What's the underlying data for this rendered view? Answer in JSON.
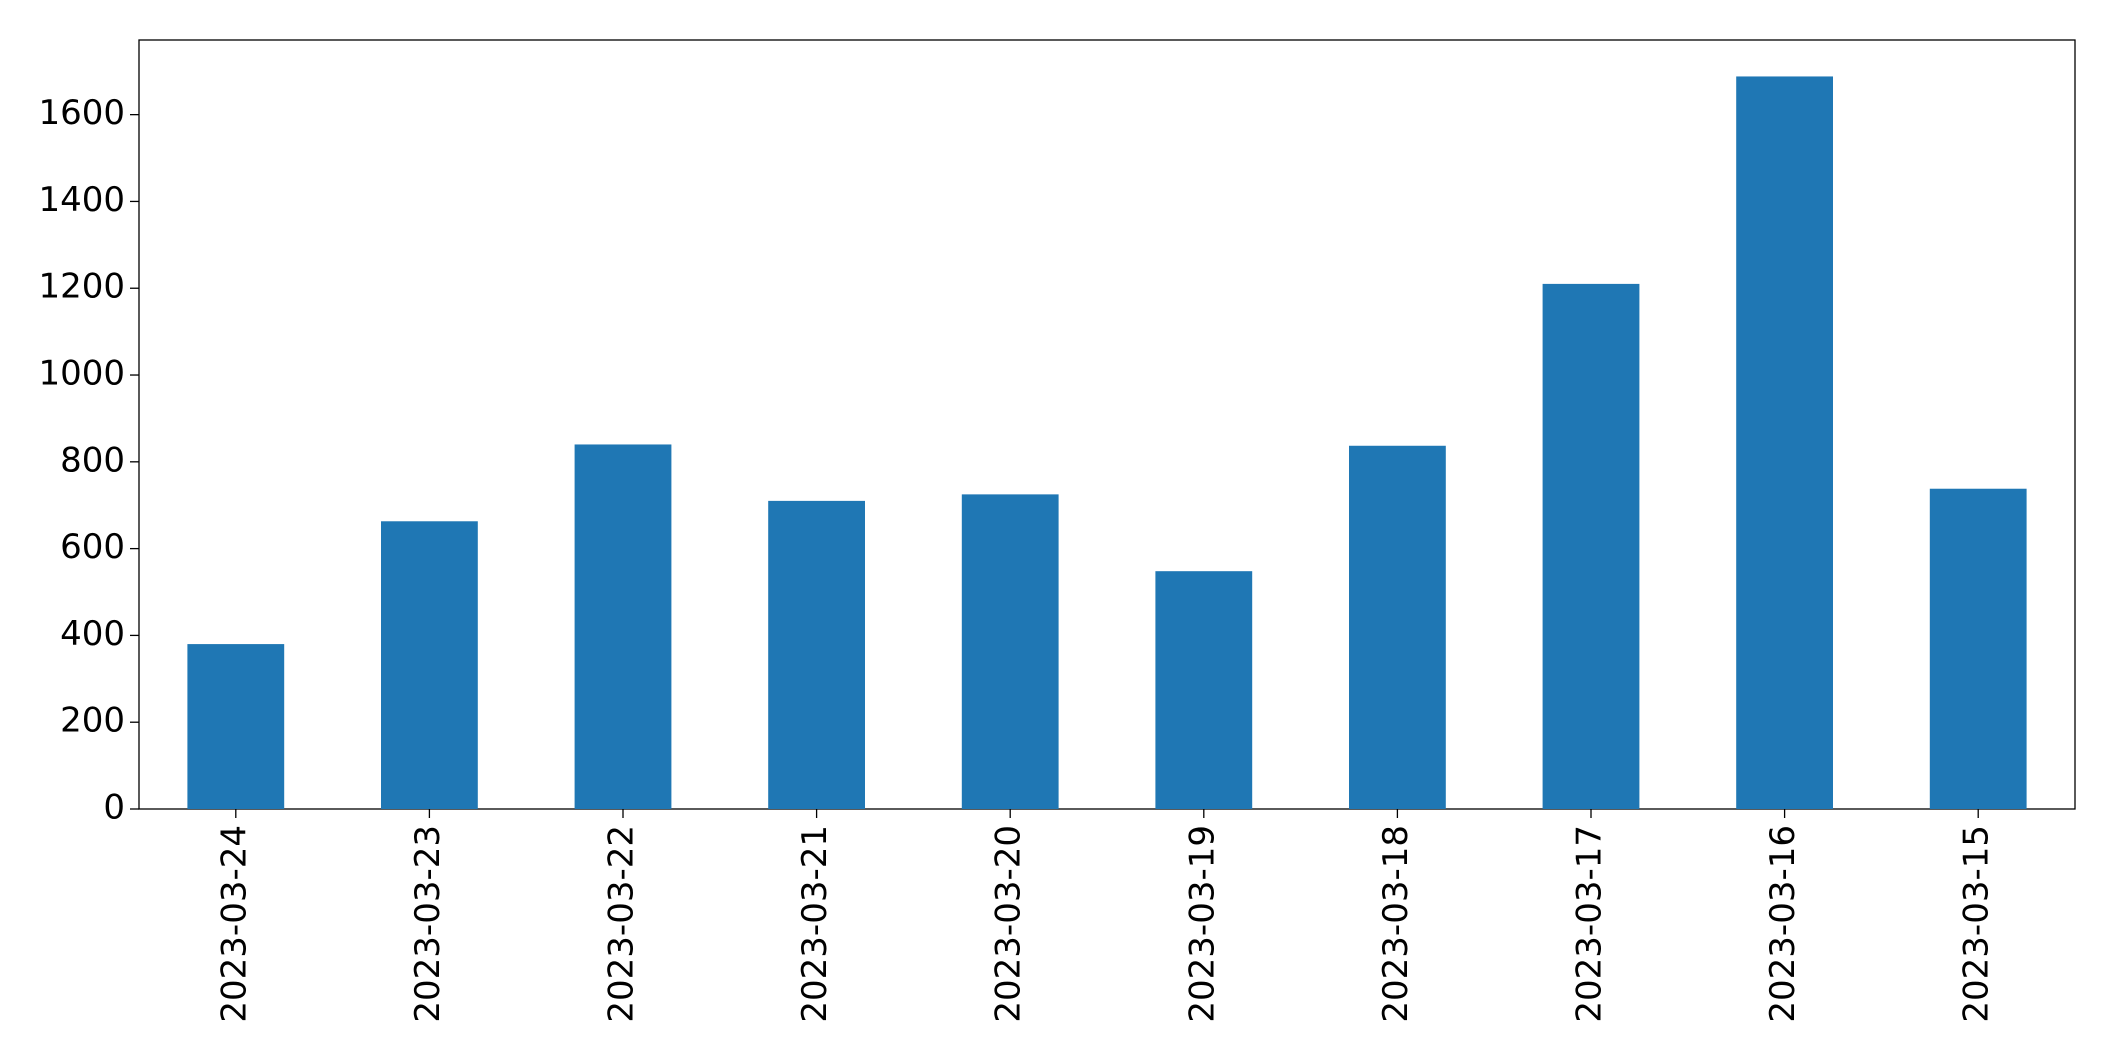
{
  "chart_data": {
    "type": "bar",
    "categories": [
      "2023-03-24",
      "2023-03-23",
      "2023-03-22",
      "2023-03-21",
      "2023-03-20",
      "2023-03-19",
      "2023-03-18",
      "2023-03-17",
      "2023-03-16",
      "2023-03-15"
    ],
    "values": [
      380,
      663,
      840,
      710,
      725,
      548,
      837,
      1210,
      1688,
      738
    ],
    "color": "#1f77b4",
    "ylim": [
      0,
      1772
    ],
    "yticks": [
      0,
      200,
      400,
      600,
      800,
      1000,
      1200,
      1400,
      1600
    ],
    "grid": false
  }
}
